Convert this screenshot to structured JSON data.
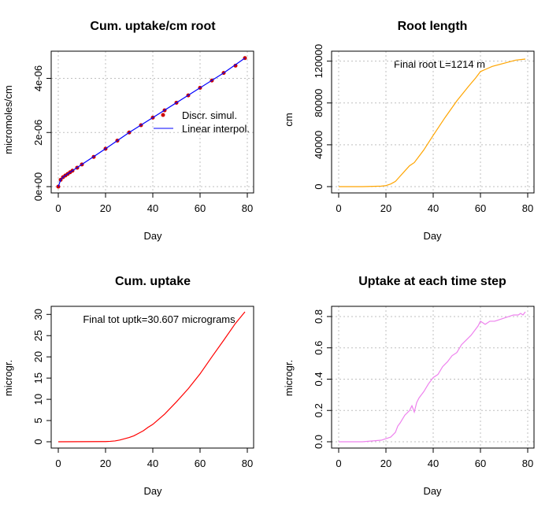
{
  "chart_data": [
    {
      "type": "scatter",
      "title": "Cum. uptake/cm root",
      "xlabel": "Day",
      "ylabel": "micromoles/cm",
      "xlim": [
        0,
        80
      ],
      "ylim": [
        0,
        4.8e-06
      ],
      "xticks": [
        "0",
        "20",
        "40",
        "60",
        "80"
      ],
      "yticks": [
        "0e+00",
        "2e-06",
        "4e-06"
      ],
      "grid": true,
      "legend_position": "right",
      "series": [
        {
          "name": "Discr. simul.",
          "color": "#CD0000",
          "style": "points",
          "x": [
            0,
            1,
            2,
            3,
            4,
            5,
            6,
            8,
            10,
            15,
            20,
            25,
            30,
            35,
            40,
            45,
            50,
            55,
            60,
            65,
            70,
            75,
            79
          ],
          "y": [
            0,
            2.5e-07,
            3.5e-07,
            4.1e-07,
            4.7e-07,
            5.3e-07,
            5.9e-07,
            7e-07,
            8.2e-07,
            1.1e-06,
            1.4e-06,
            1.7e-06,
            2e-06,
            2.27e-06,
            2.55e-06,
            2.82e-06,
            3.1e-06,
            3.37e-06,
            3.65e-06,
            3.92e-06,
            4.2e-06,
            4.47e-06,
            4.75e-06
          ]
        },
        {
          "name": "Linear interpol.",
          "color": "#0000FF",
          "style": "line",
          "x": [
            0,
            1,
            2,
            3,
            5,
            10,
            20,
            30,
            40,
            50,
            60,
            70,
            79
          ],
          "y": [
            0,
            2.5e-07,
            3.5e-07,
            4.1e-07,
            5.3e-07,
            8.2e-07,
            1.4e-06,
            2e-06,
            2.55e-06,
            3.1e-06,
            3.65e-06,
            4.2e-06,
            4.75e-06
          ]
        }
      ]
    },
    {
      "type": "line",
      "title": "Root length",
      "xlabel": "Day",
      "ylabel": "cm",
      "xlim": [
        0,
        80
      ],
      "ylim": [
        0,
        125000
      ],
      "xticks": [
        "0",
        "20",
        "40",
        "60",
        "80"
      ],
      "yticks": [
        "0",
        "40000",
        "80000",
        "120000"
      ],
      "grid": true,
      "annotation": "Final root L=1214 m",
      "series": [
        {
          "color": "#FFA500",
          "x": [
            0,
            10,
            18,
            20,
            22,
            24,
            26,
            28,
            30,
            32,
            34,
            36,
            38,
            40,
            45,
            50,
            55,
            58,
            60,
            62,
            65,
            70,
            75,
            79
          ],
          "y": [
            0,
            0,
            500,
            1000,
            2500,
            5000,
            10000,
            15000,
            20000,
            23000,
            29000,
            35000,
            42000,
            49000,
            66000,
            82000,
            96000,
            104000,
            110000,
            112000,
            115000,
            118000,
            121000,
            122000
          ]
        }
      ]
    },
    {
      "type": "line",
      "title": "Cum. uptake",
      "xlabel": "Day",
      "ylabel": "microgr.",
      "xlim": [
        0,
        80
      ],
      "ylim": [
        0,
        30.607
      ],
      "xticks": [
        "0",
        "20",
        "40",
        "60",
        "80"
      ],
      "yticks": [
        "0",
        "5",
        "10",
        "15",
        "20",
        "25",
        "30"
      ],
      "grid": false,
      "annotation": "Final tot uptk=30.607 micrograms",
      "series": [
        {
          "color": "#FF0000",
          "x": [
            0,
            20,
            22,
            24,
            26,
            28,
            30,
            32,
            34,
            36,
            38,
            40,
            45,
            50,
            55,
            60,
            65,
            70,
            75,
            79
          ],
          "y": [
            0,
            0.05,
            0.1,
            0.2,
            0.4,
            0.7,
            1.0,
            1.4,
            2.0,
            2.6,
            3.4,
            4.1,
            6.5,
            9.4,
            12.5,
            16.0,
            20.0,
            23.9,
            27.9,
            30.607
          ]
        }
      ]
    },
    {
      "type": "line",
      "title": "Uptake at each time step",
      "xlabel": "Day",
      "ylabel": "microgr.",
      "xlim": [
        0,
        80
      ],
      "ylim": [
        0,
        0.83
      ],
      "xticks": [
        "0",
        "20",
        "40",
        "60",
        "80"
      ],
      "yticks": [
        "0.0",
        "0.2",
        "0.4",
        "0.6",
        "0.8"
      ],
      "grid": true,
      "series": [
        {
          "color": "#EE82EE",
          "x": [
            0,
            10,
            18,
            20,
            22,
            24,
            25,
            26,
            28,
            30,
            31,
            32,
            33,
            34,
            35,
            36,
            38,
            40,
            42,
            44,
            46,
            48,
            50,
            52,
            54,
            56,
            58,
            59,
            60,
            61,
            62,
            64,
            66,
            68,
            70,
            72,
            74,
            76,
            77,
            78,
            79
          ],
          "y": [
            0,
            0,
            0.01,
            0.02,
            0.03,
            0.06,
            0.1,
            0.12,
            0.17,
            0.2,
            0.23,
            0.19,
            0.25,
            0.28,
            0.3,
            0.32,
            0.37,
            0.41,
            0.43,
            0.48,
            0.51,
            0.55,
            0.57,
            0.62,
            0.65,
            0.68,
            0.72,
            0.74,
            0.77,
            0.76,
            0.75,
            0.77,
            0.77,
            0.78,
            0.79,
            0.8,
            0.81,
            0.81,
            0.82,
            0.81,
            0.83
          ]
        }
      ]
    }
  ]
}
